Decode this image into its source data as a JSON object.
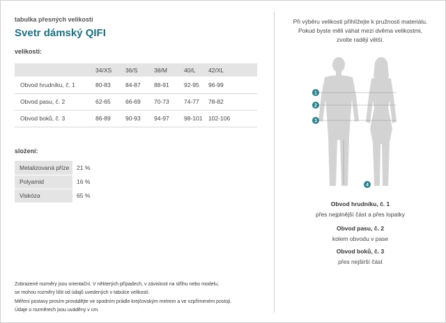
{
  "header": {
    "small_title": "tabulka přesných velikostí",
    "product_title": "Svetr dámský QIFI"
  },
  "sizes_section": {
    "label": "velikosti:",
    "columns": [
      "",
      "34/XS",
      "36/S",
      "38/M",
      "40/L",
      "42/XL"
    ],
    "rows": [
      {
        "name": "Obvod hrudníku, č. 1",
        "values": [
          "80-83",
          "84-87",
          "88-91",
          "92-95",
          "96-99"
        ]
      },
      {
        "name": "Obvod pasu, č. 2",
        "values": [
          "62-65",
          "66-69",
          "70-73",
          "74-77",
          "78-82"
        ]
      },
      {
        "name": "Obvod boků, č. 3",
        "values": [
          "86-89",
          "90-93",
          "94-97",
          "98-101",
          "102-106"
        ]
      }
    ]
  },
  "composition_section": {
    "label": "složení:",
    "rows": [
      {
        "name": "Metalizovaná příze",
        "value": "21 %"
      },
      {
        "name": "Polyamid",
        "value": "16 %"
      },
      {
        "name": "Viskóza",
        "value": "65 %"
      }
    ]
  },
  "note": {
    "line1": "Zobrazené rozměry jsou orientační. V některých případech, v závislosti na střihu nebo modelu,",
    "line2": "se mohou rozměry lišit od údajů uvedených v tabulce velikostí.",
    "line3": "Měření postavy prosím provádějte ve spodním prádle krejčovským metrem a ve vzpřímeném postoji.",
    "line4": "Údaje o rozměrech jsou uváděny v cm."
  },
  "right_panel": {
    "intro_line1": "Při výběru velikosti přihlížejte k pružnosti materiálu.",
    "intro_line2": "Pokud byste měli váhat mezi dvěma velikostmi,",
    "intro_line3": "zvolte raději větší.",
    "markers": [
      "1",
      "2",
      "3",
      "4"
    ],
    "accent_color": "#2a7d8c",
    "measurements": [
      {
        "title": "Obvod hrudníku, č. 1",
        "desc": "přes nejplnější část a přes lopatky"
      },
      {
        "title": "Obvod pasu, č. 2",
        "desc": "kolem obvodu v pase"
      },
      {
        "title": "Obvod boků, č. 3",
        "desc": "přes nejširší část"
      }
    ]
  }
}
